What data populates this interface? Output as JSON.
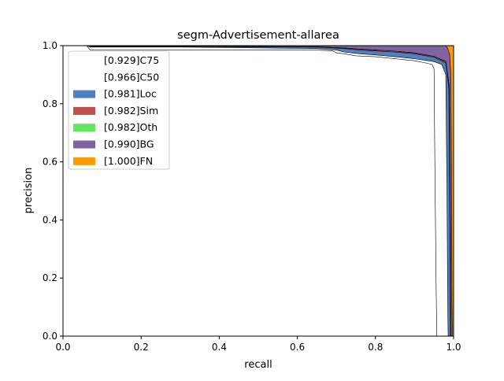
{
  "chart_data": {
    "type": "area",
    "title": "segm-Advertisement-allarea",
    "xlabel": "recall",
    "ylabel": "precision",
    "xlim": [
      0,
      1
    ],
    "ylim": [
      0,
      1
    ],
    "xticks": [
      "0.0",
      "0.2",
      "0.4",
      "0.6",
      "0.8",
      "1.0"
    ],
    "yticks": [
      "0.0",
      "0.2",
      "0.4",
      "0.6",
      "0.8",
      "1.0"
    ],
    "grid": false,
    "legend_position": "top-left",
    "series": [
      {
        "name": "[0.929]C75",
        "color": "#ffffff",
        "points": [
          [
            0,
            1
          ],
          [
            0.06,
            1
          ],
          [
            0.07,
            0.985
          ],
          [
            0.3,
            0.985
          ],
          [
            0.5,
            0.985
          ],
          [
            0.65,
            0.985
          ],
          [
            0.69,
            0.982
          ],
          [
            0.7,
            0.975
          ],
          [
            0.72,
            0.972
          ],
          [
            0.75,
            0.965
          ],
          [
            0.8,
            0.962
          ],
          [
            0.85,
            0.955
          ],
          [
            0.9,
            0.948
          ],
          [
            0.93,
            0.94
          ],
          [
            0.945,
            0.935
          ],
          [
            0.95,
            0.92
          ],
          [
            0.952,
            0.6
          ],
          [
            0.955,
            0.2
          ],
          [
            0.957,
            0
          ]
        ]
      },
      {
        "name": "[0.966]C50",
        "color": "#ffffff",
        "points": [
          [
            0,
            1
          ],
          [
            0.06,
            1
          ],
          [
            0.07,
            0.995
          ],
          [
            0.3,
            0.995
          ],
          [
            0.65,
            0.99
          ],
          [
            0.7,
            0.985
          ],
          [
            0.72,
            0.978
          ],
          [
            0.76,
            0.972
          ],
          [
            0.8,
            0.968
          ],
          [
            0.85,
            0.962
          ],
          [
            0.9,
            0.955
          ],
          [
            0.95,
            0.945
          ],
          [
            0.97,
            0.935
          ],
          [
            0.98,
            0.9
          ],
          [
            0.983,
            0.5
          ],
          [
            0.985,
            0.1
          ],
          [
            0.986,
            0
          ]
        ]
      },
      {
        "name": "[0.981]Loc",
        "color": "#4f81c0",
        "points": [
          [
            0,
            1
          ],
          [
            0.06,
            1
          ],
          [
            0.07,
            0.997
          ],
          [
            0.3,
            0.997
          ],
          [
            0.65,
            0.995
          ],
          [
            0.72,
            0.99
          ],
          [
            0.76,
            0.985
          ],
          [
            0.8,
            0.982
          ],
          [
            0.85,
            0.978
          ],
          [
            0.9,
            0.972
          ],
          [
            0.95,
            0.96
          ],
          [
            0.98,
            0.94
          ],
          [
            0.988,
            0.85
          ],
          [
            0.99,
            0.5
          ],
          [
            0.992,
            0
          ]
        ]
      },
      {
        "name": "[0.982]Sim",
        "color": "#c0504d",
        "points": [
          [
            0,
            1
          ],
          [
            0.06,
            1
          ],
          [
            0.07,
            0.998
          ],
          [
            0.3,
            0.998
          ],
          [
            0.65,
            0.996
          ],
          [
            0.72,
            0.992
          ],
          [
            0.76,
            0.988
          ],
          [
            0.8,
            0.985
          ],
          [
            0.85,
            0.981
          ],
          [
            0.9,
            0.975
          ],
          [
            0.95,
            0.963
          ],
          [
            0.98,
            0.945
          ],
          [
            0.989,
            0.86
          ],
          [
            0.991,
            0.5
          ],
          [
            0.993,
            0
          ]
        ]
      },
      {
        "name": "[0.982]Oth",
        "color": "#62e65f",
        "points": [
          [
            0,
            1
          ],
          [
            0.06,
            1
          ],
          [
            0.07,
            0.998
          ],
          [
            0.3,
            0.998
          ],
          [
            0.65,
            0.996
          ],
          [
            0.72,
            0.992
          ],
          [
            0.76,
            0.988
          ],
          [
            0.8,
            0.985
          ],
          [
            0.85,
            0.981
          ],
          [
            0.9,
            0.975
          ],
          [
            0.95,
            0.963
          ],
          [
            0.98,
            0.946
          ],
          [
            0.989,
            0.86
          ],
          [
            0.991,
            0.5
          ],
          [
            0.993,
            0
          ]
        ]
      },
      {
        "name": "[0.990]BG",
        "color": "#8064a2",
        "points": [
          [
            0,
            1
          ],
          [
            0.98,
            1
          ],
          [
            0.985,
            0.99
          ],
          [
            0.99,
            0.97
          ],
          [
            0.993,
            0.9
          ],
          [
            0.995,
            0.5
          ],
          [
            0.996,
            0.1
          ],
          [
            0.997,
            0
          ]
        ]
      },
      {
        "name": "[1.000]FN",
        "color": "#ff9a00",
        "points": [
          [
            0,
            1
          ],
          [
            1,
            1
          ],
          [
            1,
            0
          ]
        ]
      }
    ]
  }
}
